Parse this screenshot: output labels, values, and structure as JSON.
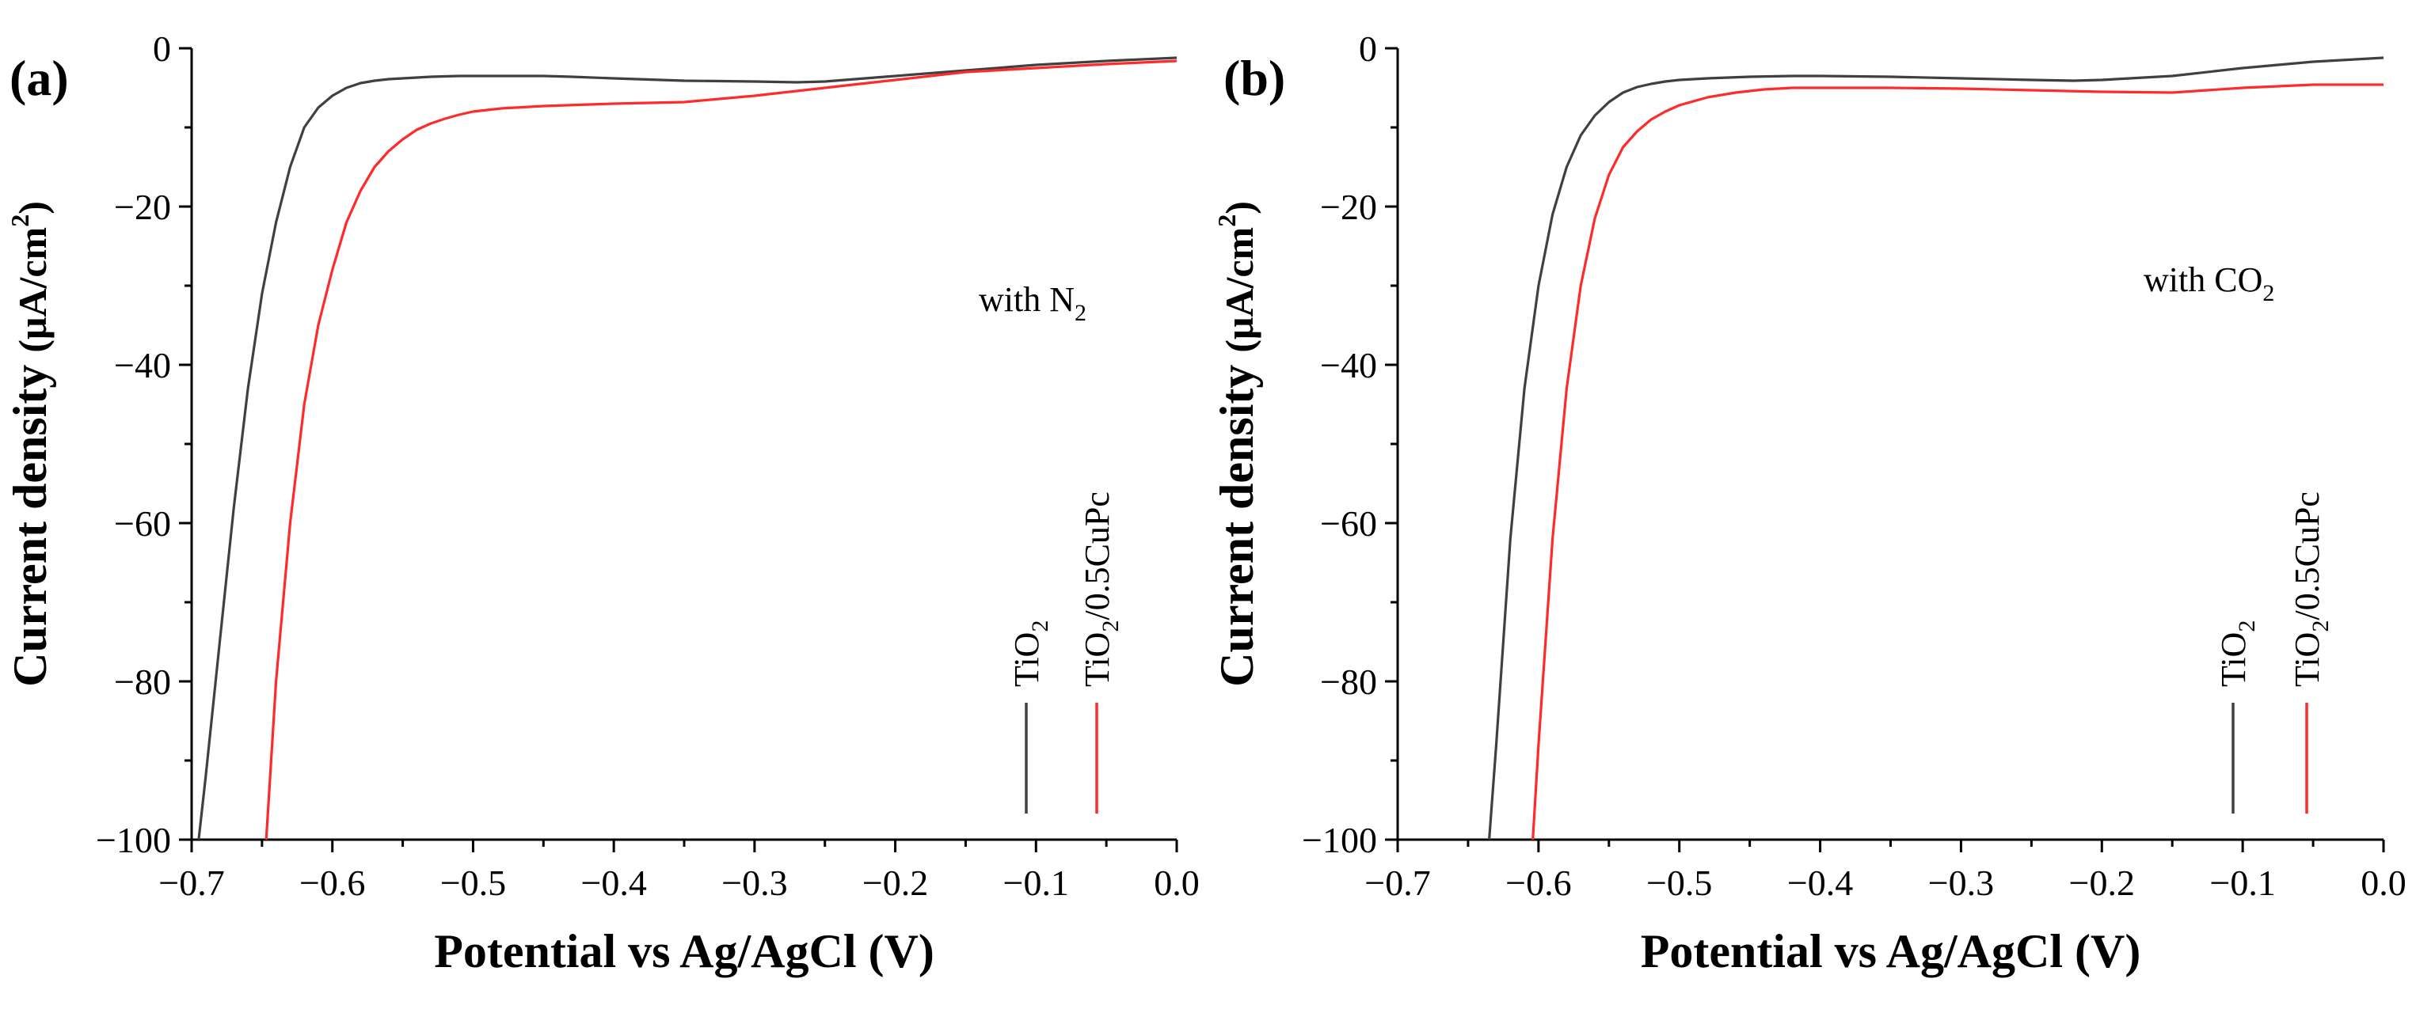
{
  "chart_data": [
    {
      "type": "line",
      "panel_label": "(a)",
      "annotation": {
        "prefix": "with N",
        "subscript": "2"
      },
      "xlabel": "Potential vs Ag/AgCl (V)",
      "ylabel": "Current density (μA/cm²)",
      "ylabel_parts": {
        "main": "Current density ",
        "unit": "(μA/cm",
        "sup": "2",
        "close": ")"
      },
      "xlim": [
        -0.7,
        0.0
      ],
      "ylim": [
        -100,
        0
      ],
      "xticks": [
        -0.7,
        -0.6,
        -0.5,
        -0.4,
        -0.3,
        -0.2,
        -0.1,
        0.0
      ],
      "xtick_labels": [
        "−0.7",
        "−0.6",
        "−0.5",
        "−0.4",
        "−0.3",
        "−0.2",
        "−0.1",
        "0.0"
      ],
      "yticks": [
        0,
        -20,
        -40,
        -60,
        -80,
        -100
      ],
      "ytick_labels": [
        "0",
        "−20",
        "−40",
        "−60",
        "−80",
        "−100"
      ],
      "legend": [
        {
          "prefix": "TiO",
          "sub": "2",
          "suffix": "",
          "color": "#404040"
        },
        {
          "prefix": "TiO",
          "sub": "2",
          "suffix": "/0.5CuPc",
          "color": "#ff2a2a"
        }
      ],
      "series": [
        {
          "name": "TiO2",
          "color": "#404040",
          "x": [
            -0.695,
            -0.69,
            -0.68,
            -0.67,
            -0.66,
            -0.65,
            -0.64,
            -0.63,
            -0.62,
            -0.61,
            -0.6,
            -0.59,
            -0.58,
            -0.57,
            -0.56,
            -0.55,
            -0.53,
            -0.51,
            -0.49,
            -0.47,
            -0.45,
            -0.43,
            -0.4,
            -0.35,
            -0.3,
            -0.27,
            -0.25,
            -0.2,
            -0.15,
            -0.1,
            -0.05,
            0.0
          ],
          "y": [
            -100,
            -92,
            -75,
            -58,
            -43,
            -31,
            -22,
            -15,
            -10,
            -7.5,
            -6,
            -5,
            -4.4,
            -4.1,
            -3.9,
            -3.8,
            -3.6,
            -3.5,
            -3.5,
            -3.5,
            -3.5,
            -3.6,
            -3.8,
            -4.1,
            -4.2,
            -4.3,
            -4.2,
            -3.5,
            -2.8,
            -2.1,
            -1.6,
            -1.2
          ]
        },
        {
          "name": "TiO2/0.5CuPc",
          "color": "#ff2a2a",
          "x": [
            -0.647,
            -0.64,
            -0.63,
            -0.62,
            -0.61,
            -0.6,
            -0.59,
            -0.58,
            -0.57,
            -0.56,
            -0.55,
            -0.54,
            -0.53,
            -0.52,
            -0.51,
            -0.5,
            -0.48,
            -0.45,
            -0.4,
            -0.35,
            -0.3,
            -0.25,
            -0.2,
            -0.15,
            -0.1,
            -0.05,
            0.0
          ],
          "y": [
            -100,
            -80,
            -60,
            -45,
            -35,
            -28,
            -22,
            -18,
            -15,
            -13,
            -11.5,
            -10.3,
            -9.5,
            -8.9,
            -8.4,
            -8.0,
            -7.6,
            -7.3,
            -7.0,
            -6.8,
            -6.0,
            -5.0,
            -4.0,
            -3.0,
            -2.5,
            -2.0,
            -1.6
          ]
        }
      ]
    },
    {
      "type": "line",
      "panel_label": "(b)",
      "annotation": {
        "prefix": "with CO",
        "subscript": "2"
      },
      "xlabel": "Potential vs Ag/AgCl (V)",
      "ylabel": "Current density (μA/cm²)",
      "ylabel_parts": {
        "main": "Current density ",
        "unit": "(μA/cm",
        "sup": "2",
        "close": ")"
      },
      "xlim": [
        -0.7,
        0.0
      ],
      "ylim": [
        -100,
        0
      ],
      "xticks": [
        -0.7,
        -0.6,
        -0.5,
        -0.4,
        -0.3,
        -0.2,
        -0.1,
        0.0
      ],
      "xtick_labels": [
        "−0.7",
        "−0.6",
        "−0.5",
        "−0.4",
        "−0.3",
        "−0.2",
        "−0.1",
        "0.0"
      ],
      "yticks": [
        0,
        -20,
        -40,
        -60,
        -80,
        -100
      ],
      "ytick_labels": [
        "0",
        "−20",
        "−40",
        "−60",
        "−80",
        "−100"
      ],
      "legend": [
        {
          "prefix": "TiO",
          "sub": "2",
          "suffix": "",
          "color": "#404040"
        },
        {
          "prefix": "TiO",
          "sub": "2",
          "suffix": "/0.5CuPc",
          "color": "#ff2a2a"
        }
      ],
      "series": [
        {
          "name": "TiO2",
          "color": "#404040",
          "x": [
            -0.635,
            -0.63,
            -0.62,
            -0.61,
            -0.6,
            -0.59,
            -0.58,
            -0.57,
            -0.56,
            -0.55,
            -0.54,
            -0.53,
            -0.52,
            -0.51,
            -0.5,
            -0.48,
            -0.45,
            -0.42,
            -0.4,
            -0.35,
            -0.3,
            -0.25,
            -0.22,
            -0.2,
            -0.15,
            -0.1,
            -0.05,
            0.0
          ],
          "y": [
            -100,
            -88,
            -62,
            -43,
            -30,
            -21,
            -15,
            -11,
            -8.5,
            -6.8,
            -5.6,
            -4.9,
            -4.5,
            -4.2,
            -4.0,
            -3.8,
            -3.6,
            -3.5,
            -3.5,
            -3.6,
            -3.8,
            -4.0,
            -4.1,
            -4.0,
            -3.5,
            -2.5,
            -1.7,
            -1.2
          ]
        },
        {
          "name": "TiO2/0.5CuPc",
          "color": "#ff2a2a",
          "x": [
            -0.604,
            -0.6,
            -0.59,
            -0.58,
            -0.57,
            -0.56,
            -0.55,
            -0.54,
            -0.53,
            -0.52,
            -0.51,
            -0.5,
            -0.48,
            -0.46,
            -0.44,
            -0.42,
            -0.4,
            -0.35,
            -0.3,
            -0.25,
            -0.2,
            -0.15,
            -0.1,
            -0.05,
            0.0
          ],
          "y": [
            -100,
            -88,
            -62,
            -43,
            -30,
            -21.5,
            -16,
            -12.5,
            -10.5,
            -9.0,
            -8.0,
            -7.2,
            -6.2,
            -5.6,
            -5.2,
            -5.0,
            -5.0,
            -5.0,
            -5.1,
            -5.3,
            -5.5,
            -5.6,
            -5.0,
            -4.6,
            -4.6
          ]
        }
      ]
    }
  ]
}
